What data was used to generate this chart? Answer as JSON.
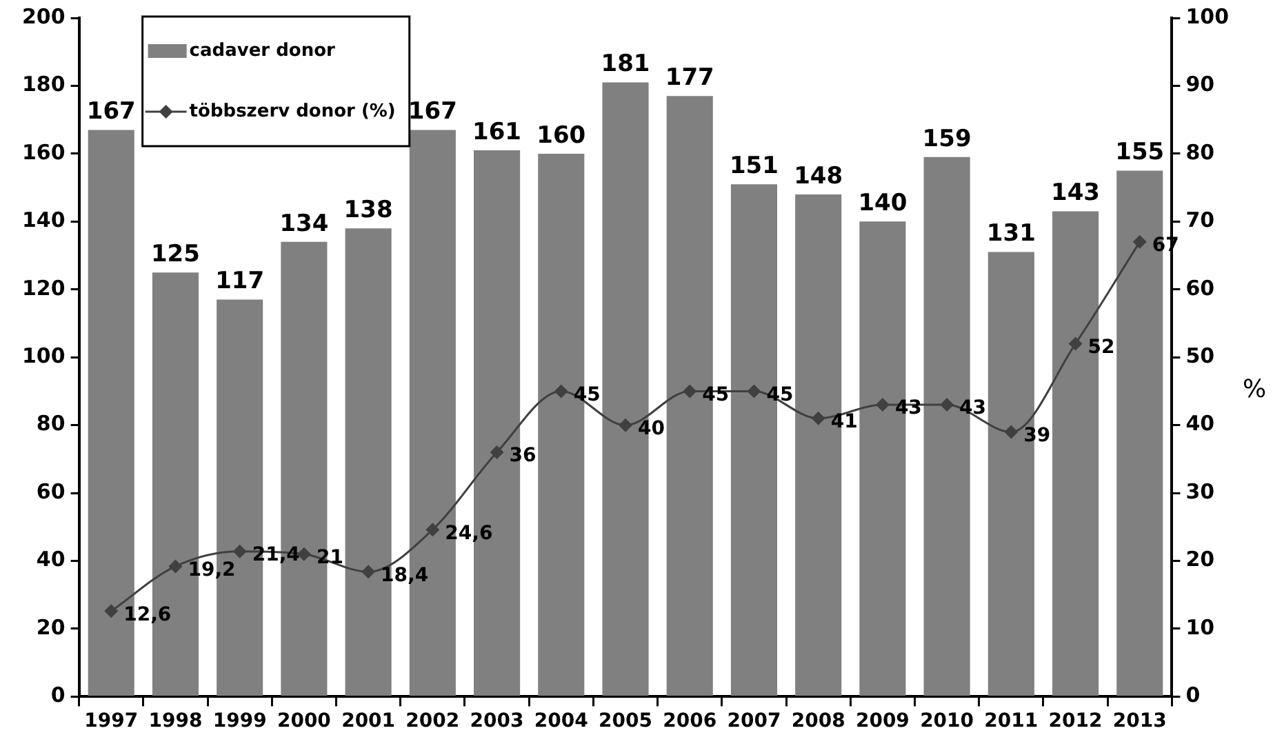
{
  "chart_data": {
    "type": "bar",
    "categories": [
      "1997",
      "1998",
      "1999",
      "2000",
      "2001",
      "2002",
      "2003",
      "2004",
      "2005",
      "2006",
      "2007",
      "2008",
      "2009",
      "2010",
      "2011",
      "2012",
      "2013"
    ],
    "series": [
      {
        "name": "cadaver donor",
        "color": "#808080",
        "values": [
          167,
          125,
          117,
          134,
          138,
          167,
          161,
          160,
          181,
          177,
          151,
          148,
          140,
          159,
          131,
          143,
          155
        ]
      },
      {
        "name": "többszerv donor (%)",
        "type": "line",
        "axis": "y2",
        "color": "#404040",
        "values": [
          12.6,
          19.2,
          21.4,
          21,
          18.4,
          24.6,
          36,
          45,
          40,
          45,
          45,
          41,
          43,
          43,
          39,
          52,
          67
        ],
        "value_labels": [
          "12,6",
          "19,2",
          "21,4",
          "21",
          "18,4",
          "24,6",
          "36",
          "45",
          "40",
          "45",
          "45",
          "41",
          "43",
          "43",
          "39",
          "52",
          "67"
        ]
      }
    ],
    "ylim": [
      0,
      200
    ],
    "yticks": [
      0,
      20,
      40,
      60,
      80,
      100,
      120,
      140,
      160,
      180,
      200
    ],
    "y2lim": [
      0,
      100
    ],
    "y2ticks": [
      0,
      10,
      20,
      30,
      40,
      50,
      60,
      70,
      80,
      90,
      100
    ],
    "y2label": "%",
    "legend": "top left",
    "marker": "diamond",
    "data_labels": true
  }
}
